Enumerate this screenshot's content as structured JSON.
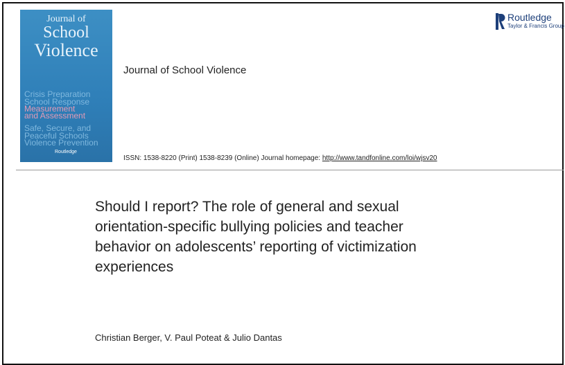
{
  "cover": {
    "title_lines": [
      "Journal of",
      "School",
      "Violence"
    ],
    "topics": [
      "Crisis Preparation",
      "School Response",
      "Measurement",
      "and Assessment",
      "Safe, Secure, and",
      "Peaceful Schools",
      "Violence Prevention"
    ],
    "publisher": "Routledge"
  },
  "header": {
    "journal": "Journal of School Violence",
    "publisher": "Routledge",
    "publisher_group": "Taylor & Francis Group",
    "issn": "ISSN: 1538-8220 (Print) 1538-8239 (Online) Journal homepage: ",
    "homepage": "http://www.tandfonline.com/loi/wjsv20"
  },
  "article": {
    "title_lines": [
      "Should I report? The role of general and sexual",
      "orientation-specific bullying policies and teacher",
      "behavior on adolescents’ reporting of victimization",
      "experiences"
    ],
    "authors": "Christian Berger, V. Paul Poteat & Julio Dantas"
  }
}
